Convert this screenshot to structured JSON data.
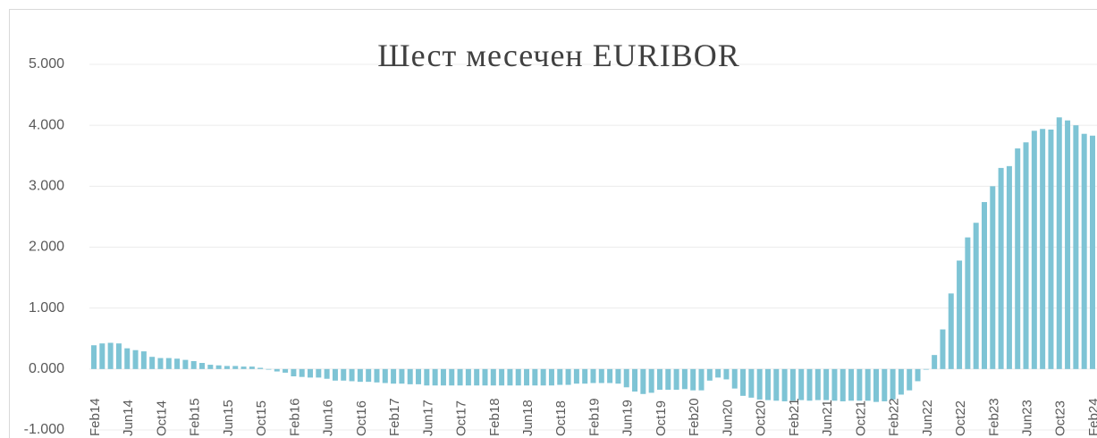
{
  "chart_data": {
    "type": "bar",
    "title": "Шест месечен EURIBOR",
    "categories": [
      "Feb14",
      null,
      null,
      null,
      "Jun14",
      null,
      null,
      null,
      "Oct14",
      null,
      null,
      null,
      "Feb15",
      null,
      null,
      null,
      "Jun15",
      null,
      null,
      null,
      "Oct15",
      null,
      null,
      null,
      "Feb16",
      null,
      null,
      null,
      "Jun16",
      null,
      null,
      null,
      "Oct16",
      null,
      null,
      null,
      "Feb17",
      null,
      null,
      null,
      "Jun17",
      null,
      null,
      null,
      "Oct17",
      null,
      null,
      null,
      "Feb18",
      null,
      null,
      null,
      "Jun18",
      null,
      null,
      null,
      "Oct18",
      null,
      null,
      null,
      "Feb19",
      null,
      null,
      null,
      "Jun19",
      null,
      null,
      null,
      "Oct19",
      null,
      null,
      null,
      "Feb20",
      null,
      null,
      null,
      "Jun20",
      null,
      null,
      null,
      "Oct20",
      null,
      null,
      null,
      "Feb21",
      null,
      null,
      null,
      "Jun21",
      null,
      null,
      null,
      "Oct21",
      null,
      null,
      null,
      "Feb22",
      null,
      null,
      null,
      "Jun22",
      null,
      null,
      null,
      "Oct22",
      null,
      null,
      null,
      "Feb23",
      null,
      null,
      null,
      "Jun23",
      null,
      null,
      null,
      "Oct23",
      null,
      null,
      null,
      "Feb24"
    ],
    "values": [
      0.39,
      0.42,
      0.43,
      0.42,
      0.34,
      0.31,
      0.29,
      0.2,
      0.18,
      0.18,
      0.17,
      0.15,
      0.13,
      0.1,
      0.07,
      0.06,
      0.05,
      0.05,
      0.04,
      0.04,
      0.02,
      -0.01,
      -0.04,
      -0.06,
      -0.12,
      -0.13,
      -0.14,
      -0.14,
      -0.16,
      -0.19,
      -0.19,
      -0.2,
      -0.21,
      -0.21,
      -0.22,
      -0.23,
      -0.24,
      -0.24,
      -0.25,
      -0.25,
      -0.27,
      -0.27,
      -0.27,
      -0.27,
      -0.27,
      -0.27,
      -0.27,
      -0.27,
      -0.27,
      -0.27,
      -0.27,
      -0.27,
      -0.27,
      -0.27,
      -0.27,
      -0.27,
      -0.26,
      -0.26,
      -0.24,
      -0.24,
      -0.23,
      -0.23,
      -0.23,
      -0.24,
      -0.3,
      -0.37,
      -0.41,
      -0.39,
      -0.34,
      -0.34,
      -0.34,
      -0.33,
      -0.35,
      -0.35,
      -0.19,
      -0.14,
      -0.17,
      -0.32,
      -0.44,
      -0.47,
      -0.5,
      -0.51,
      -0.52,
      -0.53,
      -0.52,
      -0.51,
      -0.52,
      -0.51,
      -0.51,
      -0.52,
      -0.53,
      -0.52,
      -0.52,
      -0.52,
      -0.54,
      -0.53,
      -0.5,
      -0.42,
      -0.35,
      -0.2,
      -0.01,
      0.23,
      0.65,
      1.24,
      1.78,
      2.16,
      2.4,
      2.74,
      3.0,
      3.3,
      3.33,
      3.62,
      3.72,
      3.91,
      3.94,
      3.93,
      4.13,
      4.08,
      4.0,
      3.86,
      3.83
    ],
    "color": "#7ec4d5",
    "ylim": [
      -1,
      5
    ],
    "yticks": [
      {
        "value": -1,
        "label": "-1.000"
      },
      {
        "value": 0,
        "label": "0.000"
      },
      {
        "value": 1,
        "label": "1.000"
      },
      {
        "value": 2,
        "label": "2.000"
      },
      {
        "value": 3,
        "label": "3.000"
      },
      {
        "value": 4,
        "label": "4.000"
      },
      {
        "value": 5,
        "label": "5.000"
      }
    ],
    "grid": true
  }
}
